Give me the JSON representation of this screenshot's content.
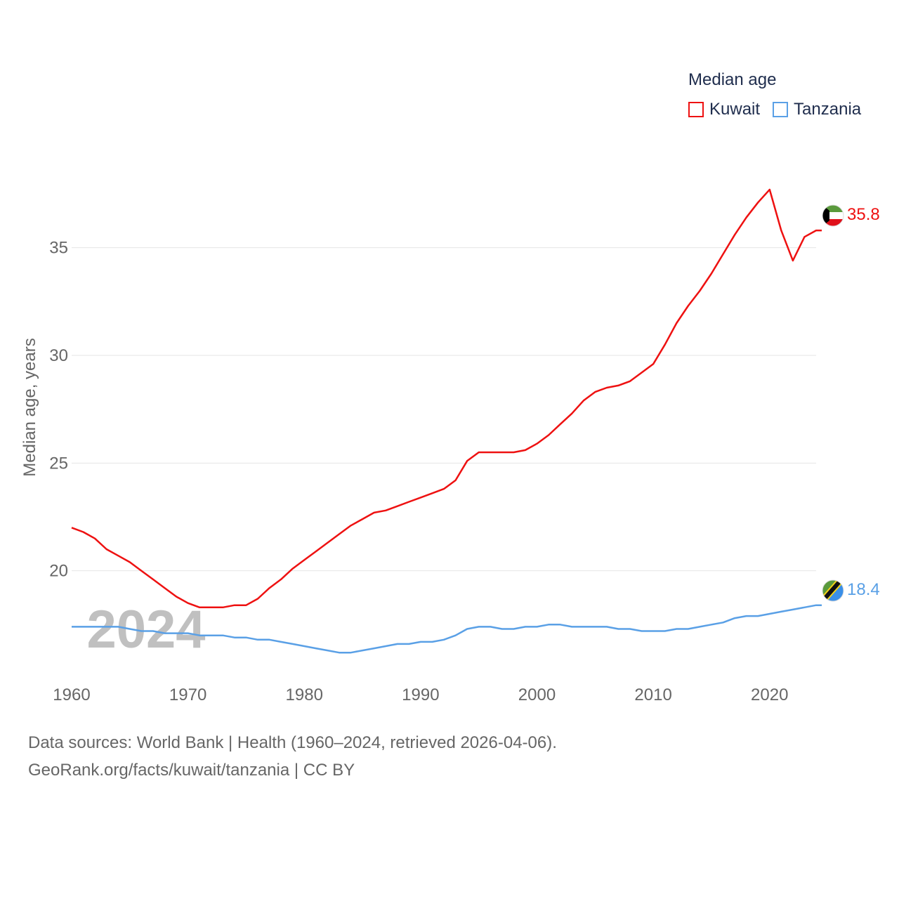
{
  "legend": {
    "title": "Median age",
    "items": [
      {
        "label": "Kuwait",
        "color": "#ee1111"
      },
      {
        "label": "Tanzania",
        "color": "#5aa0e6"
      }
    ]
  },
  "footer": {
    "line1": "Data sources: World Bank | Health (1960–2024, retrieved 2026-04-06).",
    "line2": "GeoRank.org/facts/kuwait/tanzania | CC BY"
  },
  "chart_data": {
    "type": "line",
    "title": "Median age",
    "xlabel": "",
    "ylabel": "Median age, years",
    "xlim": [
      1960,
      2024
    ],
    "ylim": [
      15,
      39
    ],
    "x_ticks": [
      1960,
      1970,
      1980,
      1990,
      2000,
      2010,
      2020
    ],
    "y_ticks": [
      20,
      25,
      30,
      35
    ],
    "grid": true,
    "legend_position": "top-right",
    "year_watermark": "2024",
    "x": [
      1960,
      1961,
      1962,
      1963,
      1964,
      1965,
      1966,
      1967,
      1968,
      1969,
      1970,
      1971,
      1972,
      1973,
      1974,
      1975,
      1976,
      1977,
      1978,
      1979,
      1980,
      1981,
      1982,
      1983,
      1984,
      1985,
      1986,
      1987,
      1988,
      1989,
      1990,
      1991,
      1992,
      1993,
      1994,
      1995,
      1996,
      1997,
      1998,
      1999,
      2000,
      2001,
      2002,
      2003,
      2004,
      2005,
      2006,
      2007,
      2008,
      2009,
      2010,
      2011,
      2012,
      2013,
      2014,
      2015,
      2016,
      2017,
      2018,
      2019,
      2020,
      2021,
      2022,
      2023,
      2024
    ],
    "series": [
      {
        "name": "Kuwait",
        "color": "#ee1111",
        "end_label": "35.8",
        "values": [
          22.0,
          21.8,
          21.5,
          21.0,
          20.7,
          20.4,
          20.0,
          19.6,
          19.2,
          18.8,
          18.5,
          18.3,
          18.3,
          18.3,
          18.4,
          18.4,
          18.7,
          19.2,
          19.6,
          20.1,
          20.5,
          20.9,
          21.3,
          21.7,
          22.1,
          22.4,
          22.7,
          22.8,
          23.0,
          23.2,
          23.4,
          23.6,
          23.8,
          24.2,
          25.1,
          25.5,
          25.5,
          25.5,
          25.5,
          25.6,
          25.9,
          26.3,
          26.8,
          27.3,
          27.9,
          28.3,
          28.5,
          28.6,
          28.8,
          29.2,
          29.6,
          30.5,
          31.5,
          32.3,
          33.0,
          33.8,
          34.7,
          35.6,
          36.4,
          37.1,
          37.7,
          35.8,
          34.4,
          35.5,
          35.8
        ]
      },
      {
        "name": "Tanzania",
        "color": "#5aa0e6",
        "end_label": "18.4",
        "values": [
          17.4,
          17.4,
          17.4,
          17.4,
          17.4,
          17.3,
          17.2,
          17.2,
          17.1,
          17.1,
          17.1,
          17.0,
          17.0,
          17.0,
          16.9,
          16.9,
          16.8,
          16.8,
          16.7,
          16.6,
          16.5,
          16.4,
          16.3,
          16.2,
          16.2,
          16.3,
          16.4,
          16.5,
          16.6,
          16.6,
          16.7,
          16.7,
          16.8,
          17.0,
          17.3,
          17.4,
          17.4,
          17.3,
          17.3,
          17.4,
          17.4,
          17.5,
          17.5,
          17.4,
          17.4,
          17.4,
          17.4,
          17.3,
          17.3,
          17.2,
          17.2,
          17.2,
          17.3,
          17.3,
          17.4,
          17.5,
          17.6,
          17.8,
          17.9,
          17.9,
          18.0,
          18.1,
          18.2,
          18.3,
          18.4
        ]
      }
    ]
  }
}
